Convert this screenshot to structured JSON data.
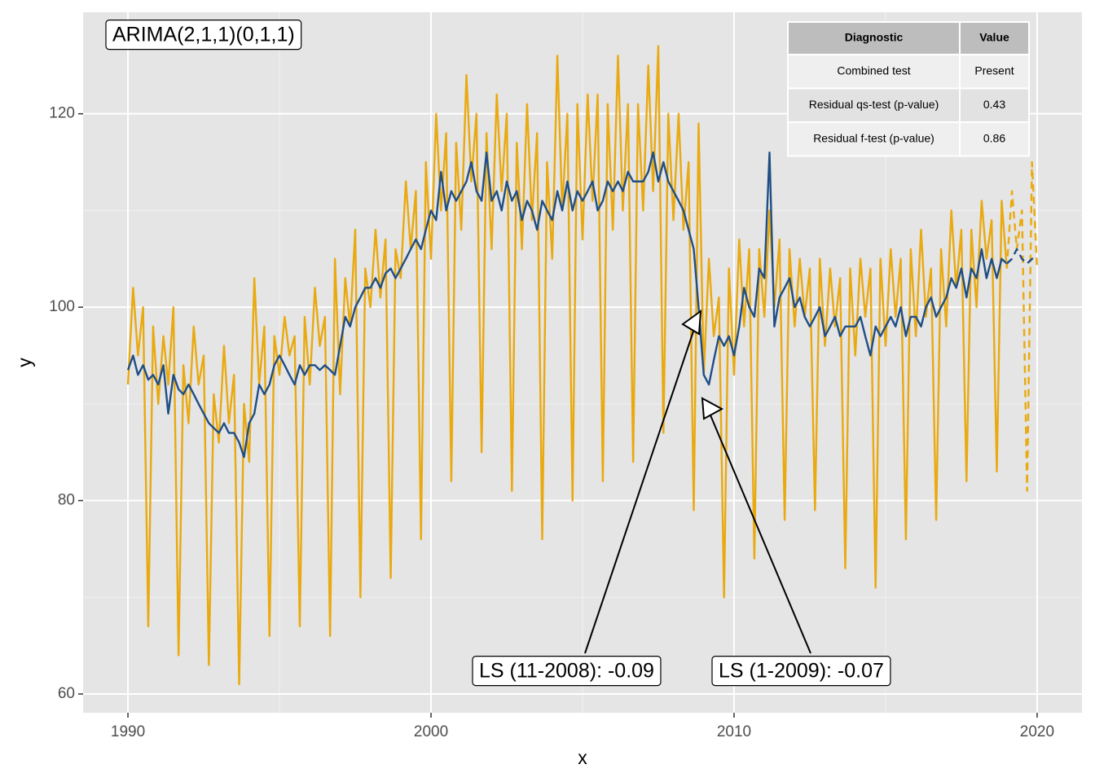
{
  "chart_data": {
    "type": "line",
    "x_label": "x",
    "y_label": "y",
    "xlim": [
      1988.52,
      2021.48
    ],
    "ylim": [
      58.06,
      130.5
    ],
    "xticks": [
      1990,
      2000,
      2010,
      2020
    ],
    "yticks": [
      60,
      80,
      100,
      120
    ],
    "xminorticks": [
      1995,
      2005,
      2015
    ],
    "yminorticks": [
      70,
      90,
      110
    ],
    "grid": true,
    "model_label": "ARIMA(2,1,1)(0,1,1)",
    "annotations": [
      "LS (11-2008): -0.09",
      "LS (1-2009): -0.07"
    ],
    "table": {
      "columns": [
        "Diagnostic",
        "Value"
      ],
      "rows": [
        [
          "Combined test",
          "Present"
        ],
        [
          "Residual qs-test (p-value)",
          0.43
        ],
        [
          "Residual f-test (p-value)",
          0.86
        ]
      ]
    },
    "x": [
      1990,
      1990.17,
      1990.33,
      1990.5,
      1990.67,
      1990.83,
      1991,
      1991.17,
      1991.33,
      1991.5,
      1991.67,
      1991.83,
      1992,
      1992.17,
      1992.33,
      1992.5,
      1992.67,
      1992.83,
      1993,
      1993.17,
      1993.33,
      1993.5,
      1993.67,
      1993.83,
      1994,
      1994.17,
      1994.33,
      1994.5,
      1994.67,
      1994.83,
      1995,
      1995.17,
      1995.33,
      1995.5,
      1995.67,
      1995.83,
      1996,
      1996.17,
      1996.33,
      1996.5,
      1996.67,
      1996.83,
      1997,
      1997.17,
      1997.33,
      1997.5,
      1997.67,
      1997.83,
      1998,
      1998.17,
      1998.33,
      1998.5,
      1998.67,
      1998.83,
      1999,
      1999.17,
      1999.33,
      1999.5,
      1999.67,
      1999.83,
      2000,
      2000.17,
      2000.33,
      2000.5,
      2000.67,
      2000.83,
      2001,
      2001.17,
      2001.33,
      2001.5,
      2001.67,
      2001.83,
      2002,
      2002.17,
      2002.33,
      2002.5,
      2002.67,
      2002.83,
      2003,
      2003.17,
      2003.33,
      2003.5,
      2003.67,
      2003.83,
      2004,
      2004.17,
      2004.33,
      2004.5,
      2004.67,
      2004.83,
      2005,
      2005.17,
      2005.33,
      2005.5,
      2005.67,
      2005.83,
      2006,
      2006.17,
      2006.33,
      2006.5,
      2006.67,
      2006.83,
      2007,
      2007.17,
      2007.33,
      2007.5,
      2007.67,
      2007.83,
      2008,
      2008.17,
      2008.33,
      2008.5,
      2008.67,
      2008.83,
      2009,
      2009.17,
      2009.33,
      2009.5,
      2009.67,
      2009.83,
      2010,
      2010.17,
      2010.33,
      2010.5,
      2010.67,
      2010.83,
      2011,
      2011.17,
      2011.33,
      2011.5,
      2011.67,
      2011.83,
      2012,
      2012.17,
      2012.33,
      2012.5,
      2012.67,
      2012.83,
      2013,
      2013.17,
      2013.33,
      2013.5,
      2013.67,
      2013.83,
      2014,
      2014.17,
      2014.33,
      2014.5,
      2014.67,
      2014.83,
      2015,
      2015.17,
      2015.33,
      2015.5,
      2015.67,
      2015.83,
      2016,
      2016.17,
      2016.33,
      2016.5,
      2016.67,
      2016.83,
      2017,
      2017.17,
      2017.33,
      2017.5,
      2017.67,
      2017.83,
      2018,
      2018.17,
      2018.33,
      2018.5,
      2018.67,
      2018.83,
      2019
    ],
    "series": [
      {
        "color": "#e9a90f",
        "values": [
          92,
          102,
          95,
          100,
          67,
          98,
          90,
          97,
          92,
          100,
          64,
          94,
          88,
          98,
          92,
          95,
          63,
          91,
          86,
          96,
          88,
          93,
          61,
          90,
          84,
          103,
          92,
          98,
          66,
          97,
          93,
          99,
          95,
          97,
          67,
          99,
          92,
          102,
          96,
          99,
          66,
          105,
          91,
          103,
          98,
          108,
          70,
          104,
          100,
          108,
          101,
          107,
          72,
          106,
          103,
          113,
          106,
          112,
          76,
          115,
          105,
          120,
          110,
          118,
          82,
          117,
          108,
          124,
          113,
          120,
          85,
          118,
          106,
          122,
          112,
          120,
          81,
          117,
          106,
          121,
          109,
          118,
          76,
          115,
          105,
          126,
          110,
          120,
          80,
          121,
          107,
          122,
          111,
          122,
          82,
          121,
          108,
          126,
          110,
          121,
          84,
          121,
          110,
          125,
          112,
          127,
          87,
          120,
          109,
          120,
          108,
          115,
          79,
          119,
          93,
          105,
          97,
          101,
          70,
          104,
          93,
          107,
          98,
          106,
          74,
          106,
          99,
          110,
          100,
          107,
          78,
          106,
          98,
          105,
          99,
          104,
          79,
          105,
          96,
          104,
          98,
          103,
          73,
          104,
          95,
          105,
          99,
          104,
          71,
          105,
          96,
          106,
          99,
          105,
          76,
          106,
          97,
          108,
          99,
          104,
          78,
          106,
          98,
          110,
          102,
          108,
          82,
          108,
          100,
          111,
          105,
          109,
          83,
          111,
          104
        ]
      },
      {
        "color": "#1f4e85",
        "values": [
          93.5,
          95,
          93,
          94,
          92.5,
          93,
          92,
          94,
          89,
          93,
          91.5,
          91,
          92,
          91,
          90,
          89,
          88,
          87.5,
          87,
          88,
          87,
          87,
          86,
          84.5,
          88,
          89,
          92,
          91,
          92,
          94,
          95,
          94,
          93,
          92,
          94,
          93,
          94,
          94,
          93.5,
          94,
          93.5,
          93,
          96,
          99,
          98,
          100,
          101,
          102,
          102,
          103,
          102,
          103.5,
          104,
          103,
          104,
          105,
          106,
          107,
          106,
          108,
          110,
          109,
          114,
          110,
          112,
          111,
          112,
          113,
          115,
          112,
          111,
          116,
          111,
          112,
          110,
          113,
          111,
          112,
          109,
          111,
          110,
          108,
          111,
          110,
          109,
          112,
          110,
          113,
          110,
          112,
          111,
          112,
          113,
          110,
          111,
          113,
          112,
          113,
          112,
          114,
          113,
          113,
          113,
          114,
          116,
          113,
          115,
          113,
          112,
          111,
          110,
          108,
          106,
          100,
          93,
          92,
          94.5,
          97,
          96,
          97,
          95,
          98,
          102,
          100,
          99,
          104,
          103,
          116,
          98,
          101,
          102,
          103,
          100,
          101,
          99,
          98,
          99,
          100,
          97,
          98,
          99,
          97,
          98,
          98,
          98,
          99,
          97,
          95,
          98,
          97,
          98,
          99,
          98,
          100,
          97,
          99,
          99,
          98,
          100,
          101,
          99,
          100,
          101,
          103,
          102,
          104,
          101,
          104,
          103,
          106,
          103,
          105,
          103,
          105,
          104.5
        ]
      },
      {
        "color": "#e9a90f",
        "style": "dashed",
        "x": [
          2019,
          2019.17,
          2019.33,
          2019.5,
          2019.67,
          2019.83,
          2020
        ],
        "values": [
          104,
          112,
          106,
          110,
          81,
          115,
          104
        ]
      },
      {
        "color": "#1f4e85",
        "style": "dashed",
        "x": [
          2019,
          2019.17,
          2019.33,
          2019.5,
          2019.67,
          2019.83,
          2020
        ],
        "values": [
          104.5,
          105,
          106,
          105,
          104.5,
          105,
          105
        ]
      }
    ]
  }
}
